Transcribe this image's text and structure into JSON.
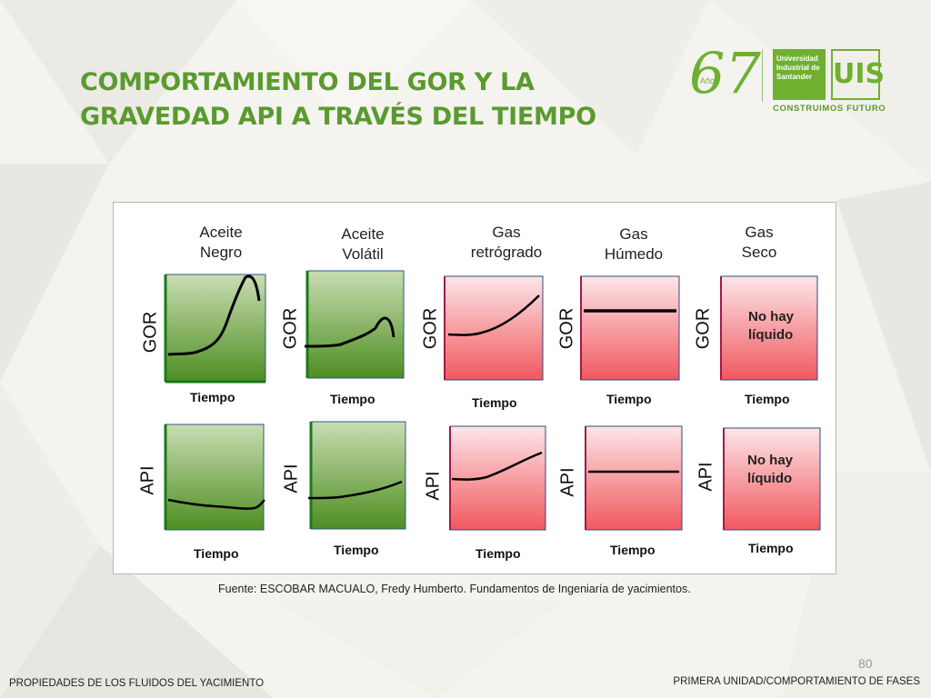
{
  "title": {
    "line1": "COMPORTAMIENTO DEL GOR Y LA",
    "line2": "GRAVEDAD API A TRAVÉS DEL TIEMPO"
  },
  "logo": {
    "number": "67",
    "anos": "Años",
    "university": [
      "Universidad",
      "Industrial de",
      "Santander"
    ],
    "emblem": "UIS",
    "tagline": "CONSTRUIMOS FUTURO"
  },
  "columns": [
    {
      "title": [
        "Aceite",
        "Negro"
      ],
      "color": "green"
    },
    {
      "title": [
        "Aceite",
        "Volátil"
      ],
      "color": "green"
    },
    {
      "title": [
        "Gas",
        "retrógrado"
      ],
      "color": "red"
    },
    {
      "title": [
        "Gas",
        "Húmedo"
      ],
      "color": "red"
    },
    {
      "title": [
        "Gas",
        "Seco"
      ],
      "color": "red"
    }
  ],
  "rows": [
    {
      "ylabel": "GOR",
      "xlabel": "Tiempo"
    },
    {
      "ylabel": "API",
      "xlabel": "Tiempo"
    }
  ],
  "no_liquid_text": [
    "No hay",
    "líquido"
  ],
  "colors": {
    "green_top": "#c7dcb0",
    "green_bottom": "#4f8f24",
    "red_top": "#fde4e6",
    "red_bottom": "#f0595f",
    "title": "#5a9a2e"
  },
  "source": "Fuente: ESCOBAR MACUALO, Fredy Humberto. Fundamentos de Ingeniaría de yacimientos.",
  "page_number": "80",
  "footer_left": "PROPIEDADES DE LOS FLUIDOS DEL YACIMIENTO",
  "footer_right": "PRIMERA UNIDAD/COMPORTAMIENTO DE FASES"
}
